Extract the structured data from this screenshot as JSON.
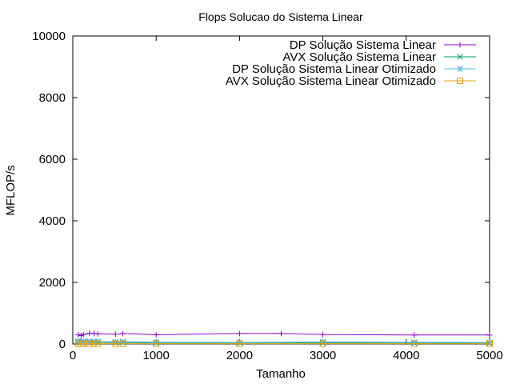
{
  "chart_data": {
    "type": "line",
    "title": "Flops Solucao do Sistema Linear",
    "xlabel": "Tamanho",
    "ylabel": "MFLOP/s",
    "xlim": [
      0,
      5000
    ],
    "ylim": [
      0,
      10000
    ],
    "xticks": [
      "0",
      "1000",
      "2000",
      "3000",
      "4000",
      "5000"
    ],
    "yticks": [
      "0",
      "2000",
      "4000",
      "6000",
      "8000",
      "10000"
    ],
    "grid": false,
    "legend_position": "top-right",
    "series": [
      {
        "name": "DP Solução Sistema Linear",
        "color": "#9400d3",
        "marker": "plus",
        "points": [
          [
            64,
            300
          ],
          [
            100,
            270
          ],
          [
            128,
            310
          ],
          [
            200,
            350
          ],
          [
            256,
            340
          ],
          [
            300,
            330
          ],
          [
            512,
            320
          ],
          [
            600,
            340
          ],
          [
            1000,
            300
          ],
          [
            2000,
            340
          ],
          [
            2500,
            340
          ],
          [
            3000,
            310
          ],
          [
            4096,
            290
          ],
          [
            5000,
            290
          ]
        ]
      },
      {
        "name": "AVX Solução Sistema Linear",
        "color": "#009e73",
        "marker": "cross",
        "points": [
          [
            64,
            70
          ],
          [
            100,
            60
          ],
          [
            128,
            65
          ],
          [
            200,
            70
          ],
          [
            256,
            60
          ],
          [
            300,
            55
          ],
          [
            512,
            45
          ],
          [
            600,
            50
          ],
          [
            1000,
            35
          ],
          [
            2000,
            30
          ],
          [
            3000,
            40
          ],
          [
            4096,
            30
          ],
          [
            5000,
            25
          ]
        ]
      },
      {
        "name": "DP Solução Sistema Linear Otimizado",
        "color": "#56b4e9",
        "marker": "star",
        "points": [
          [
            64,
            90
          ],
          [
            100,
            80
          ],
          [
            128,
            85
          ],
          [
            200,
            90
          ],
          [
            256,
            85
          ],
          [
            300,
            80
          ],
          [
            512,
            70
          ],
          [
            600,
            80
          ],
          [
            1000,
            60
          ],
          [
            2000,
            50
          ],
          [
            3000,
            70
          ],
          [
            4096,
            55
          ],
          [
            5000,
            50
          ]
        ]
      },
      {
        "name": "AVX Solução Sistema Linear Otimizado",
        "color": "#e69f00",
        "marker": "square",
        "points": [
          [
            64,
            10
          ],
          [
            100,
            10
          ],
          [
            128,
            10
          ],
          [
            200,
            10
          ],
          [
            256,
            10
          ],
          [
            300,
            10
          ],
          [
            512,
            10
          ],
          [
            600,
            10
          ],
          [
            1000,
            10
          ],
          [
            2000,
            10
          ],
          [
            3000,
            10
          ],
          [
            4096,
            10
          ],
          [
            5000,
            10
          ]
        ]
      }
    ]
  }
}
